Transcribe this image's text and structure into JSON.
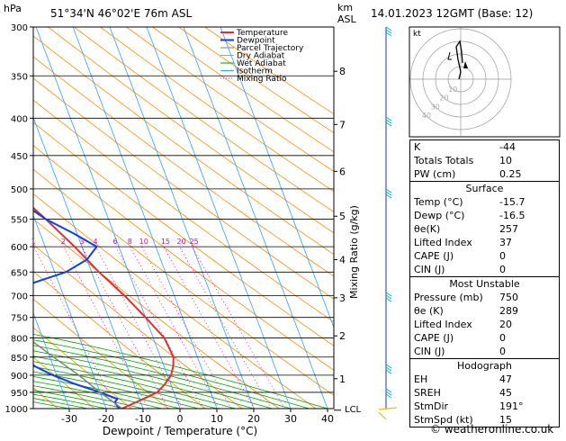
{
  "header": {
    "pressure_unit": "hPa",
    "location": "51°34'N 46°02'E 76m ASL",
    "height_unit": "km",
    "height_unit2": "ASL",
    "datetime": "14.01.2023 12GMT (Base: 12)"
  },
  "legend": [
    "Temperature",
    "Dewpoint",
    "Parcel Trajectory",
    "Dry Adiabat",
    "Wet Adiabat",
    "Isotherm",
    "Mixing Ratio"
  ],
  "colors": {
    "temperature": "#e03030",
    "dewpoint": "#1040e0",
    "parcel": "#808080",
    "dry_adiabat": "#ff8c00",
    "wet_adiabat": "#00a000",
    "isotherm": "#30a0ff",
    "mixing_ratio": "#e000a0"
  },
  "chart_data": {
    "type": "line",
    "title": "",
    "xlabel": "Dewpoint / Temperature (°C)",
    "ylabel": "",
    "y2label": "Mixing Ratio (g/kg)",
    "xlim": [
      -40,
      40
    ],
    "x_ticks": [
      -30,
      -20,
      -10,
      0,
      10,
      20,
      30,
      40
    ],
    "pressure_levels": [
      300,
      350,
      400,
      450,
      500,
      550,
      600,
      650,
      700,
      750,
      800,
      850,
      900,
      950,
      1000
    ],
    "km_labels": [
      {
        "p": 345,
        "km": "8"
      },
      {
        "p": 408,
        "km": "7"
      },
      {
        "p": 473,
        "km": "6"
      },
      {
        "p": 545,
        "km": "5"
      },
      {
        "p": 625,
        "km": "4"
      },
      {
        "p": 705,
        "km": "3"
      },
      {
        "p": 795,
        "km": "2"
      },
      {
        "p": 910,
        "km": "1"
      }
    ],
    "lcl_label": "LCL",
    "lcl_pressure": 1005,
    "mixing_ratio_labels": [
      "1",
      "2",
      "3",
      "4",
      "6",
      "8",
      "10",
      "15",
      "20",
      "25"
    ],
    "mixing_ratio_values": [
      1,
      2,
      3,
      4,
      6,
      8,
      10,
      15,
      20,
      25
    ],
    "series": [
      {
        "name": "Temperature",
        "points": [
          [
            1000,
            -15.7
          ],
          [
            970,
            -9
          ],
          [
            950,
            -4.5
          ],
          [
            925,
            -1.5
          ],
          [
            900,
            1
          ],
          [
            875,
            2.5
          ],
          [
            850,
            3.5
          ],
          [
            800,
            3
          ],
          [
            750,
            0
          ],
          [
            700,
            -3.5
          ],
          [
            650,
            -8
          ],
          [
            600,
            -12
          ],
          [
            550,
            -17
          ],
          [
            500,
            -23
          ],
          [
            450,
            -30
          ],
          [
            400,
            -38
          ],
          [
            350,
            -46
          ],
          [
            300,
            -54
          ]
        ]
      },
      {
        "name": "Dewpoint",
        "points": [
          [
            1000,
            -16.5
          ],
          [
            980,
            -17
          ],
          [
            970,
            -16
          ],
          [
            950,
            -20
          ],
          [
            925,
            -26
          ],
          [
            900,
            -31
          ],
          [
            875,
            -35
          ],
          [
            850,
            -37
          ],
          [
            800,
            -38
          ],
          [
            750,
            -36
          ],
          [
            700,
            -33
          ],
          [
            675,
            -28
          ],
          [
            650,
            -17
          ],
          [
            625,
            -10
          ],
          [
            600,
            -6
          ],
          [
            575,
            -11
          ],
          [
            550,
            -17
          ],
          [
            500,
            -26
          ],
          [
            450,
            -36
          ],
          [
            400,
            -45
          ],
          [
            350,
            -55
          ],
          [
            300,
            -65
          ]
        ]
      },
      {
        "name": "Parcel Trajectory",
        "points": [
          [
            1000,
            -15.7
          ],
          [
            950,
            -20
          ],
          [
            900,
            -24
          ],
          [
            850,
            -29
          ],
          [
            800,
            -34
          ],
          [
            750,
            -39
          ],
          [
            700,
            -45
          ],
          [
            650,
            -51
          ],
          [
            600,
            -58
          ],
          [
            550,
            -65
          ],
          [
            500,
            -72
          ],
          [
            450,
            -80
          ],
          [
            400,
            -88
          ]
        ]
      }
    ]
  },
  "hodograph": {
    "label": "kt",
    "ring_labels": [
      "10",
      "20",
      "30",
      "40"
    ]
  },
  "indices": {
    "k_label": "K",
    "k_value": "-44",
    "tt_label": "Totals Totals",
    "tt_value": "10",
    "pw_label": "PW (cm)",
    "pw_value": "0.25",
    "surface_title": "Surface",
    "temp_label": "Temp (°C)",
    "temp_value": "-15.7",
    "dewp_label": "Dewp (°C)",
    "dewp_value": "-16.5",
    "thetae_label": "θe(K)",
    "thetae_value": "257",
    "li_label": "Lifted Index",
    "li_value": "37",
    "cape_label": "CAPE (J)",
    "cape_value": "0",
    "cin_label": "CIN (J)",
    "cin_value": "0",
    "mu_title": "Most Unstable",
    "mu_pressure_label": "Pressure (mb)",
    "mu_pressure_value": "750",
    "mu_thetae_label": "θe (K)",
    "mu_thetae_value": "289",
    "mu_li_label": "Lifted Index",
    "mu_li_value": "20",
    "mu_cape_label": "CAPE (J)",
    "mu_cape_value": "0",
    "mu_cin_label": "CIN (J)",
    "mu_cin_value": "0",
    "hodo_title": "Hodograph",
    "eh_label": "EH",
    "eh_value": "47",
    "sreh_label": "SREH",
    "sreh_value": "45",
    "stmdir_label": "StmDir",
    "stmdir_value": "191°",
    "stmspd_label": "StmSpd (kt)",
    "stmspd_value": "15"
  },
  "footer": {
    "copyright": "© weatheronline.co.uk"
  }
}
